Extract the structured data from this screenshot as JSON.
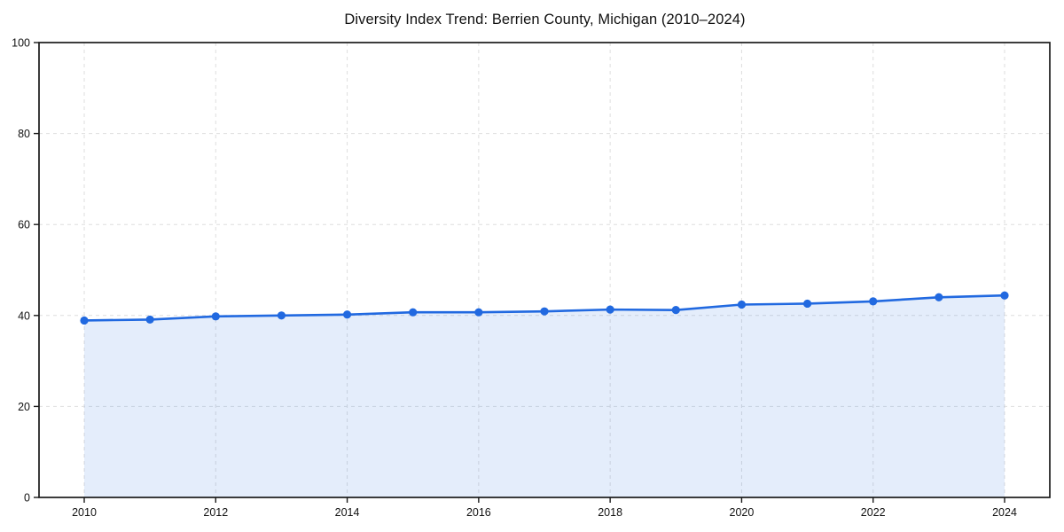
{
  "page": {
    "background": "#ffffff"
  },
  "chart_data": {
    "type": "line",
    "title": "Diversity Index Trend: Berrien County, Michigan (2010–2024)",
    "x": [
      2010,
      2011,
      2012,
      2013,
      2014,
      2015,
      2016,
      2017,
      2018,
      2019,
      2020,
      2021,
      2022,
      2023,
      2024
    ],
    "series": [
      {
        "name": "Diversity Index",
        "values": [
          38.9,
          39.1,
          39.8,
          40.0,
          40.2,
          40.7,
          40.7,
          40.9,
          41.3,
          41.2,
          42.4,
          42.6,
          43.1,
          44.0,
          44.4
        ]
      }
    ],
    "xlabel": "",
    "ylabel": "",
    "ylim": [
      0,
      100
    ],
    "xlim": [
      2010,
      2024
    ],
    "y_ticks": [
      0,
      20,
      40,
      60,
      80,
      100
    ],
    "x_ticks": [
      2010,
      2012,
      2014,
      2016,
      2018,
      2020,
      2022,
      2024
    ],
    "grid": true,
    "grid_style": "dashed",
    "legend": "none",
    "marker": "circle",
    "area_fill": true,
    "colors": {
      "line": "#2169e0",
      "fill": "rgba(33, 105, 224, 0.12)",
      "grid": "#dedede",
      "axis": "#1a1a1a",
      "text": "#111111"
    }
  }
}
